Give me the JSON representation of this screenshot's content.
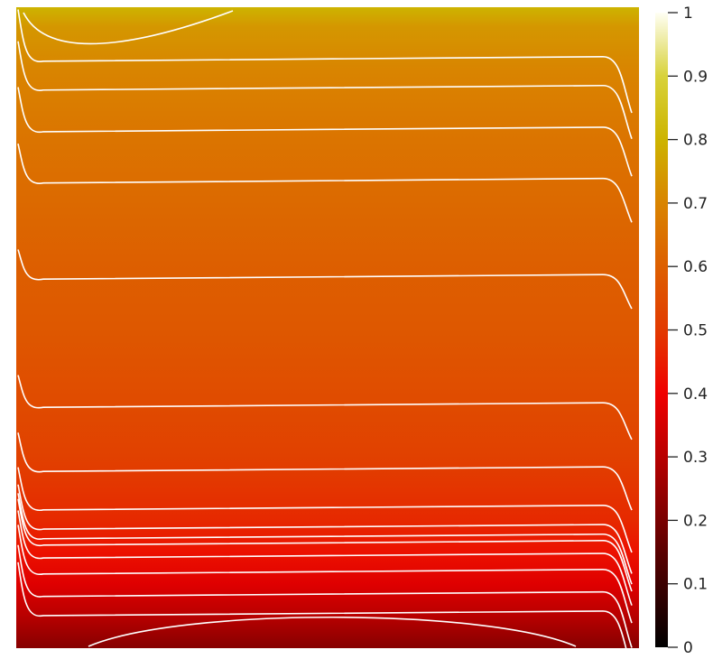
{
  "chart_data": {
    "type": "heatmap",
    "title": "",
    "xlabel": "",
    "ylabel": "",
    "colorbar": {
      "range": [
        0,
        1
      ],
      "ticks": [
        "0",
        "0.1",
        "0.2",
        "0.3",
        "0.4",
        "0.5",
        "0.6",
        "0.7",
        "0.8",
        "0.9",
        "1"
      ],
      "colormap": [
        {
          "value": 0.0,
          "color": "#000000"
        },
        {
          "value": 0.15,
          "color": "#5a0000"
        },
        {
          "value": 0.3,
          "color": "#b80000"
        },
        {
          "value": 0.4,
          "color": "#f00000"
        },
        {
          "value": 0.5,
          "color": "#e23a00"
        },
        {
          "value": 0.6,
          "color": "#dd5f00"
        },
        {
          "value": 0.7,
          "color": "#d98400"
        },
        {
          "value": 0.8,
          "color": "#cdb400"
        },
        {
          "value": 0.9,
          "color": "#d8d23a"
        },
        {
          "value": 1.0,
          "color": "#fffff4"
        }
      ]
    },
    "field_profile": [
      {
        "y": 0.0,
        "value": 0.22
      },
      {
        "y": 0.05,
        "value": 0.3
      },
      {
        "y": 0.1,
        "value": 0.37
      },
      {
        "y": 0.15,
        "value": 0.43
      },
      {
        "y": 0.2,
        "value": 0.47
      },
      {
        "y": 0.3,
        "value": 0.52
      },
      {
        "y": 0.4,
        "value": 0.55
      },
      {
        "y": 0.5,
        "value": 0.58
      },
      {
        "y": 0.6,
        "value": 0.6
      },
      {
        "y": 0.7,
        "value": 0.63
      },
      {
        "y": 0.8,
        "value": 0.66
      },
      {
        "y": 0.9,
        "value": 0.7
      },
      {
        "y": 0.97,
        "value": 0.74
      },
      {
        "y": 1.0,
        "value": 0.8
      }
    ],
    "isolines_y": [
      0.012,
      0.055,
      0.085,
      0.12,
      0.145,
      0.165,
      0.175,
      0.19,
      0.22,
      0.28,
      0.38,
      0.58,
      0.73,
      0.81,
      0.875,
      0.92,
      0.985
    ],
    "contour_color": "#ffffff",
    "grid": false,
    "legend": "none"
  }
}
